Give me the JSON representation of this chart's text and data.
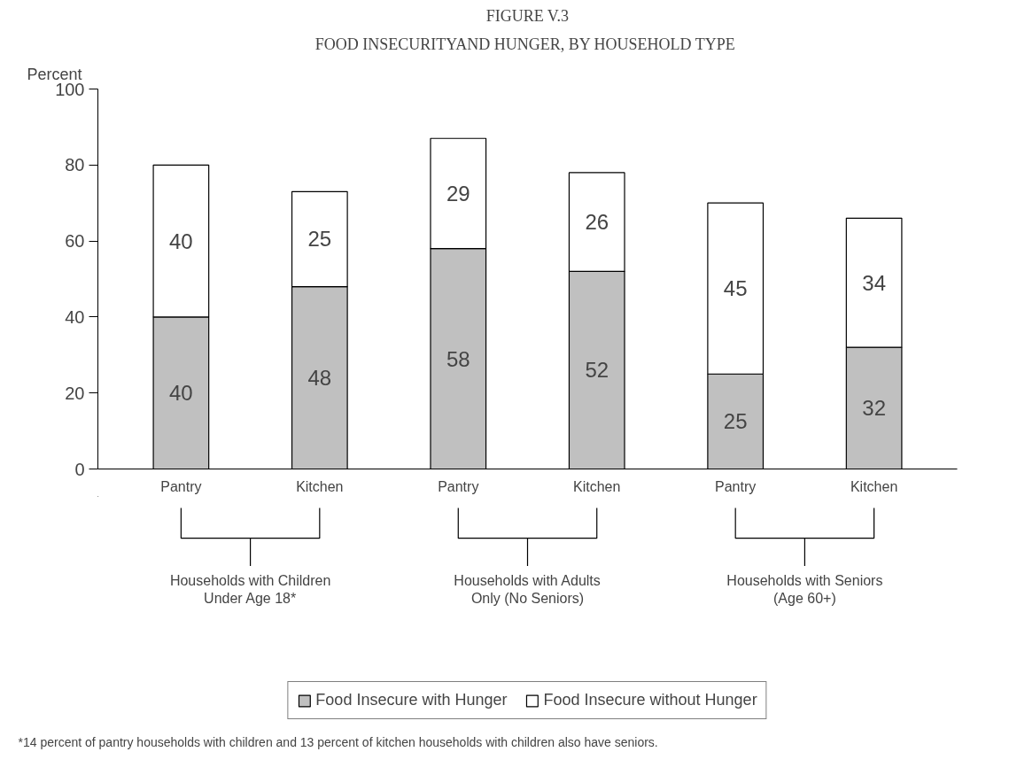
{
  "chart_data": {
    "type": "bar",
    "stacked": true,
    "title": "FIGURE V.3",
    "subtitle": "FOOD INSECURITYAND HUNGER,  BY HOUSEHOLD TYPE",
    "ylabel": "Percent",
    "categories": [
      "Pantry",
      "Kitchen",
      "Pantry",
      "Kitchen",
      "Pantry",
      "Kitchen"
    ],
    "series": [
      {
        "name": "Food Insecure with Hunger",
        "color": "#c0c0c0",
        "values": [
          40,
          48,
          58,
          52,
          25,
          32
        ]
      },
      {
        "name": "Food Insecure without Hunger",
        "color": "#ffffff",
        "values": [
          40,
          25,
          29,
          26,
          45,
          34
        ]
      }
    ],
    "ylim": [
      0,
      100
    ],
    "yticks": [
      0,
      20,
      40,
      60,
      80,
      100
    ],
    "data_labels": true,
    "legend": "bottom",
    "grid": false,
    "annotations": [
      "Households with Children\nUnder Age 18*",
      "Households with Adults\nOnly (No Seniors)",
      "Households with Seniors\n(Age 60+)",
      "*14 percent of pantry households with children and 13 percent of kitchen households with children also have seniors."
    ]
  }
}
